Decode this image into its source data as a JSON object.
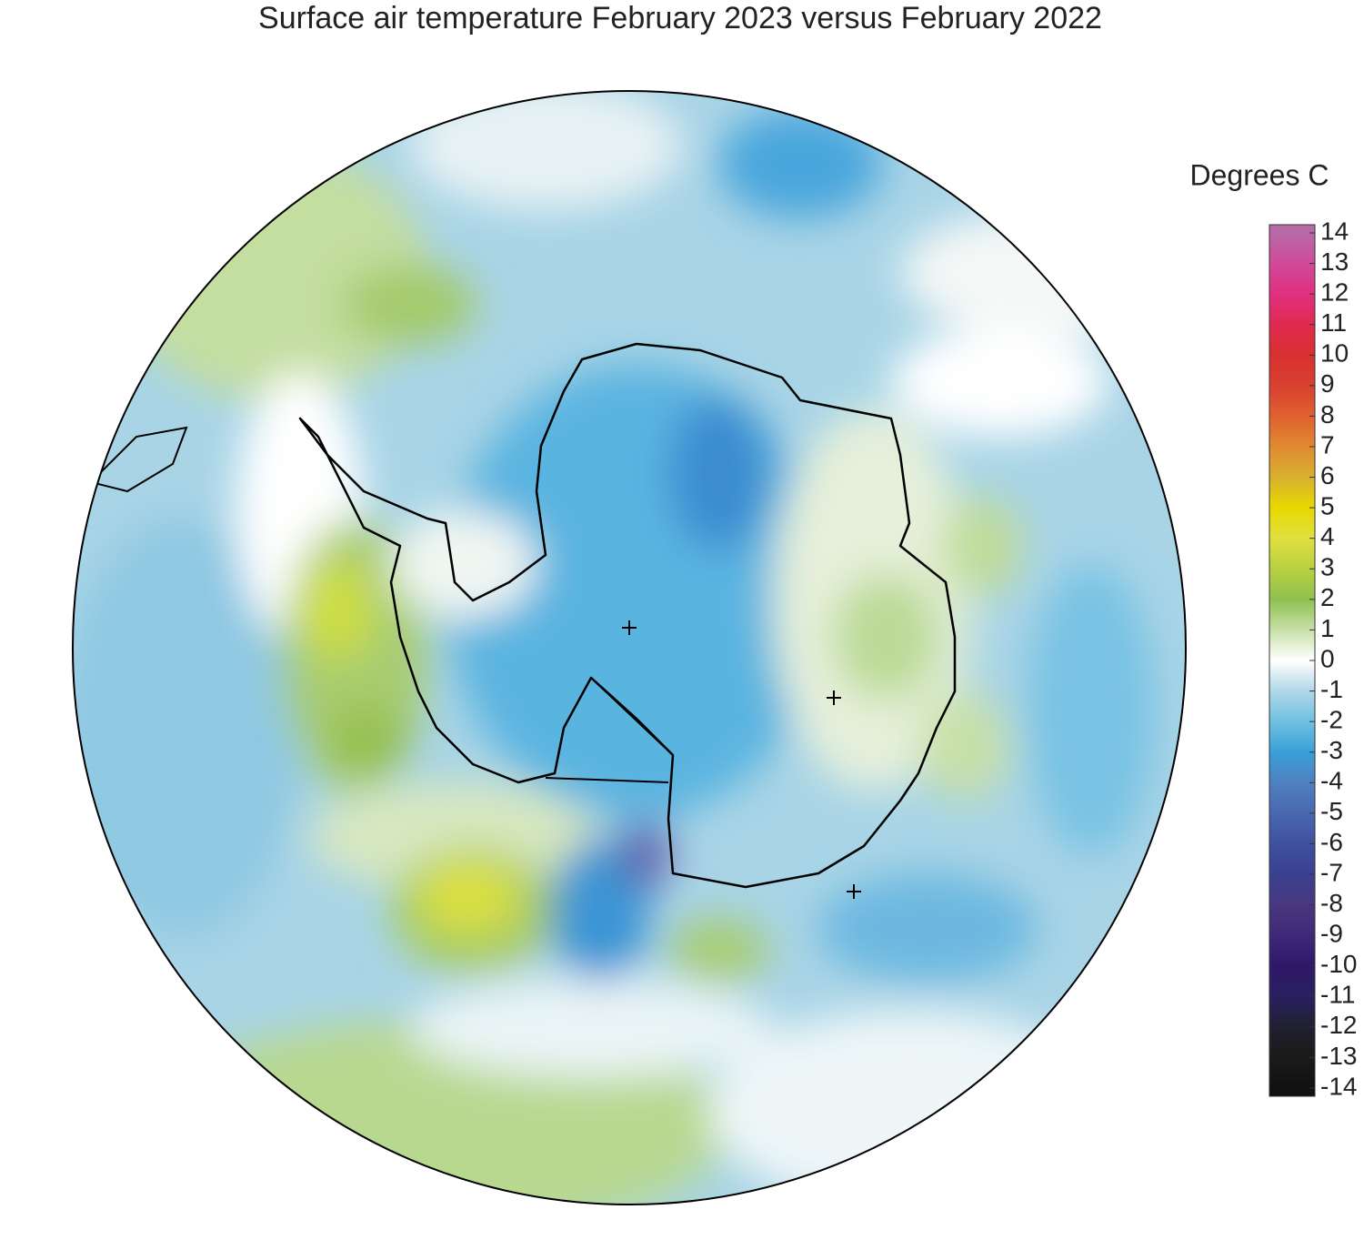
{
  "title": "Surface air temperature February 2023 versus February 2022",
  "colorbar": {
    "label": "Degrees C",
    "ticks": [
      14,
      13,
      12,
      11,
      10,
      9,
      8,
      7,
      6,
      5,
      4,
      3,
      2,
      1,
      0,
      -1,
      -2,
      -3,
      -4,
      -5,
      -6,
      -7,
      -8,
      -9,
      -10,
      -11,
      -12,
      -13,
      -14
    ],
    "colors": [
      "#b86aa8",
      "#d04a9a",
      "#e03080",
      "#e02a50",
      "#d83030",
      "#d84030",
      "#e06030",
      "#e08a30",
      "#d8b030",
      "#e8d800",
      "#e0e040",
      "#b8d040",
      "#90c050",
      "#c8e0a8",
      "#ffffff",
      "#b0d8e8",
      "#70c0e0",
      "#3aa0d8",
      "#5080c0",
      "#4868b0",
      "#4050a0",
      "#3a4090",
      "#483880",
      "#402878",
      "#301868",
      "#282060",
      "#202030",
      "#1a1a1a",
      "#111111"
    ]
  }
}
